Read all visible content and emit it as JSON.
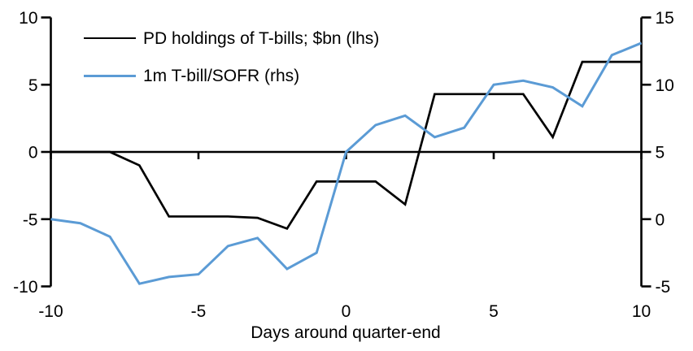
{
  "chart_data": {
    "type": "line",
    "title": "",
    "xlabel": "Days around quarter-end",
    "grid": false,
    "legend_position": "top-left-inside",
    "x": [
      -10,
      -9,
      -8,
      -7,
      -6,
      -5,
      -4,
      -3,
      -2,
      -1,
      0,
      1,
      2,
      3,
      4,
      5,
      6,
      7,
      8,
      9,
      10
    ],
    "series": [
      {
        "name": "PD holdings of T-bills; $bn (lhs)",
        "axis": "left",
        "color": "#000000",
        "values": [
          0,
          0,
          0,
          -1.0,
          -4.8,
          -4.8,
          -4.8,
          -4.9,
          -5.7,
          -2.2,
          -2.2,
          -2.2,
          -3.9,
          4.3,
          4.3,
          4.3,
          4.3,
          1.1,
          6.7,
          6.7,
          6.7
        ]
      },
      {
        "name": "1m T-bill/SOFR (rhs)",
        "axis": "right",
        "color": "#5B9BD5",
        "values": [
          0.0,
          -0.3,
          -1.3,
          -4.8,
          -4.3,
          -4.1,
          -2.0,
          -1.4,
          -3.7,
          -2.5,
          5.0,
          7.0,
          7.7,
          6.1,
          6.8,
          10.0,
          10.3,
          9.8,
          8.4,
          12.2,
          13.1
        ]
      }
    ],
    "axes": {
      "left": {
        "min": -10,
        "max": 10,
        "ticks": [
          10,
          5,
          0,
          -5,
          -10
        ]
      },
      "right": {
        "min": -5,
        "max": 15,
        "ticks": [
          15,
          10,
          5,
          0,
          -5
        ]
      },
      "x": {
        "min": -10,
        "max": 10,
        "ticks": [
          -10,
          -5,
          0,
          5,
          10
        ]
      }
    },
    "axis_color": "#000000",
    "tick_font_px": 21
  }
}
